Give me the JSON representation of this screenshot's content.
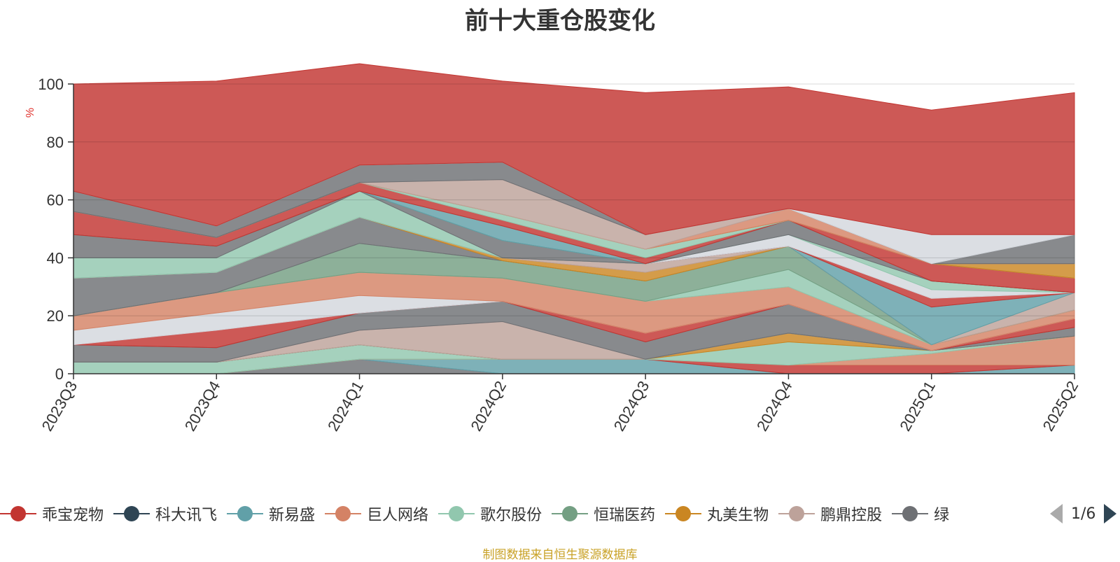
{
  "title": "前十大重仓股变化",
  "source_note": "制图数据来自恒生聚源数据库",
  "legend": {
    "page_text": "1/6",
    "items": [
      {
        "name": "乖宝宠物",
        "color": "#c23531"
      },
      {
        "name": "科大讯飞",
        "color": "#2f4554"
      },
      {
        "name": "新易盛",
        "color": "#61a0a8"
      },
      {
        "name": "巨人网络",
        "color": "#d48265"
      },
      {
        "name": "歌尔股份",
        "color": "#91c7ae"
      },
      {
        "name": "恒瑞医药",
        "color": "#749f83"
      },
      {
        "name": "丸美生物",
        "color": "#ca8622"
      },
      {
        "name": "鹏鼎控股",
        "color": "#bda29a"
      },
      {
        "name": "绿",
        "color": "#6e7074"
      }
    ]
  },
  "chart_data": {
    "type": "area",
    "stacked": true,
    "title": "前十大重仓股变化",
    "ylabel": "%",
    "ylim": [
      0,
      100
    ],
    "yticks": [
      0,
      20,
      40,
      60,
      80,
      100
    ],
    "categories": [
      "2023Q3",
      "2023Q4",
      "2024Q1",
      "2024Q2",
      "2024Q3",
      "2024Q4",
      "2025Q1",
      "2025Q2"
    ],
    "grid": true,
    "series": [
      {
        "color": "#6e7074",
        "values": [
          0,
          0,
          5,
          0,
          0,
          0,
          0,
          0
        ]
      },
      {
        "color": "#61a0a8",
        "values": [
          0,
          0,
          0,
          5,
          5,
          0,
          0,
          3
        ]
      },
      {
        "color": "#c23531",
        "values": [
          0,
          0,
          0,
          0,
          0,
          3,
          3,
          0
        ]
      },
      {
        "color": "#d48265",
        "values": [
          0,
          0,
          0,
          0,
          0,
          0,
          4,
          10
        ]
      },
      {
        "color": "#91c7ae",
        "values": [
          4,
          4,
          5,
          0,
          0,
          8,
          1,
          0
        ]
      },
      {
        "color": "#ca8622",
        "values": [
          0,
          0,
          0,
          0,
          0,
          3,
          0,
          0
        ]
      },
      {
        "color": "#6e7074",
        "values": [
          0,
          0,
          0,
          0,
          0,
          0,
          0,
          3
        ]
      },
      {
        "color": "#749f83",
        "values": [
          0,
          0,
          0,
          0,
          0,
          0,
          0,
          0
        ]
      },
      {
        "color": "#bda29a",
        "values": [
          0,
          0,
          5,
          13,
          0,
          0,
          0,
          0
        ]
      },
      {
        "color": "#6e7074",
        "values": [
          6,
          5,
          6,
          7,
          6,
          10,
          0,
          0
        ]
      },
      {
        "color": "#c23531",
        "values": [
          0,
          6,
          0,
          0,
          3,
          0,
          0,
          3
        ]
      },
      {
        "color": "#d3d7dd",
        "values": [
          5,
          6,
          6,
          0,
          0,
          0,
          0,
          0
        ]
      },
      {
        "color": "#d48265",
        "values": [
          5,
          7,
          8,
          8,
          11,
          6,
          2,
          3
        ]
      },
      {
        "color": "#91c7ae",
        "values": [
          0,
          0,
          0,
          0,
          0,
          6,
          0,
          0
        ]
      },
      {
        "color": "#749f83",
        "values": [
          0,
          0,
          10,
          6,
          7,
          8,
          0,
          0
        ]
      },
      {
        "color": "#6e7074",
        "values": [
          13,
          7,
          9,
          0,
          0,
          0,
          0,
          0
        ]
      },
      {
        "color": "#ca8622",
        "values": [
          0,
          0,
          0,
          1,
          3,
          0,
          0,
          0
        ]
      },
      {
        "color": "#bda29a",
        "values": [
          0,
          0,
          0,
          0,
          3,
          0,
          0,
          6
        ]
      },
      {
        "color": "#61a0a8",
        "values": [
          0,
          0,
          0,
          0,
          0,
          0,
          13,
          0
        ]
      },
      {
        "color": "#c23531",
        "values": [
          0,
          0,
          0,
          0,
          0,
          0,
          3,
          0
        ]
      },
      {
        "color": "#d3d7dd",
        "values": [
          0,
          0,
          0,
          0,
          0,
          4,
          3,
          0
        ]
      },
      {
        "color": "#91c7ae",
        "values": [
          7,
          5,
          9,
          0,
          0,
          0,
          3,
          0
        ]
      },
      {
        "color": "#6e7074",
        "values": [
          8,
          4,
          0,
          6,
          0,
          5,
          0,
          0
        ]
      },
      {
        "color": "#749f83",
        "values": [
          0,
          0,
          0,
          0,
          0,
          0,
          0,
          0
        ]
      },
      {
        "color": "#61a0a8",
        "values": [
          0,
          0,
          0,
          5,
          0,
          0,
          0,
          0
        ]
      },
      {
        "color": "#c23531",
        "values": [
          8,
          3,
          3,
          2,
          2,
          0,
          6,
          5
        ]
      },
      {
        "color": "#91c7ae",
        "values": [
          0,
          0,
          0,
          2,
          3,
          0,
          0,
          0
        ]
      },
      {
        "color": "#ca8622",
        "values": [
          0,
          0,
          0,
          0,
          0,
          0,
          0,
          5
        ]
      },
      {
        "color": "#d48265",
        "values": [
          0,
          0,
          0,
          0,
          0,
          4,
          0,
          0
        ]
      },
      {
        "color": "#bda29a",
        "values": [
          0,
          0,
          0,
          12,
          5,
          0,
          0,
          0
        ]
      },
      {
        "color": "#6e7074",
        "values": [
          7,
          4,
          6,
          6,
          0,
          0,
          0,
          10
        ]
      },
      {
        "color": "#d3d7dd",
        "values": [
          0,
          0,
          0,
          0,
          0,
          0,
          10,
          0
        ]
      },
      {
        "color": "#c23531",
        "values": [
          37,
          50,
          35,
          28,
          49,
          42,
          43,
          49
        ]
      }
    ]
  }
}
